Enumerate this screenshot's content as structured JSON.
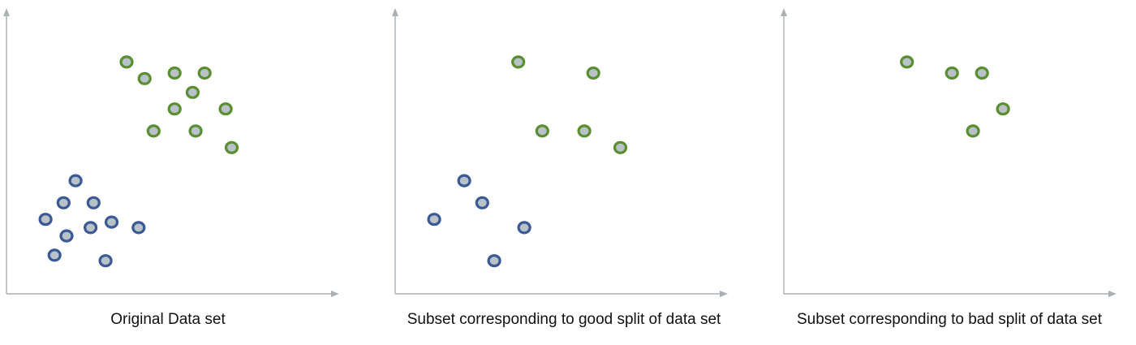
{
  "colors": {
    "axis": "#a9b1b5",
    "green_ring": "#5a8f31",
    "blue_ring": "#3b5a95",
    "point_fill": "#b9c2c9"
  },
  "chart_data": [
    {
      "type": "scatter",
      "title": "Original Data set",
      "xlabel": "",
      "ylabel": "",
      "grid": false,
      "series": [
        {
          "class": "green",
          "color": "#5a8f31",
          "points": [
            [
              0.4,
              0.84
            ],
            [
              0.46,
              0.78
            ],
            [
              0.56,
              0.8
            ],
            [
              0.66,
              0.8
            ],
            [
              0.62,
              0.73
            ],
            [
              0.56,
              0.67
            ],
            [
              0.73,
              0.67
            ],
            [
              0.49,
              0.59
            ],
            [
              0.63,
              0.59
            ],
            [
              0.75,
              0.53
            ]
          ]
        },
        {
          "class": "blue",
          "color": "#3b5a95",
          "points": [
            [
              0.23,
              0.41
            ],
            [
              0.19,
              0.33
            ],
            [
              0.29,
              0.33
            ],
            [
              0.13,
              0.27
            ],
            [
              0.35,
              0.26
            ],
            [
              0.44,
              0.24
            ],
            [
              0.28,
              0.24
            ],
            [
              0.2,
              0.21
            ],
            [
              0.16,
              0.14
            ],
            [
              0.33,
              0.12
            ]
          ]
        }
      ]
    },
    {
      "type": "scatter",
      "title": "Subset corresponding to good split of data set",
      "xlabel": "",
      "ylabel": "",
      "grid": false,
      "series": [
        {
          "class": "green",
          "color": "#5a8f31",
          "points": [
            [
              0.41,
              0.84
            ],
            [
              0.66,
              0.8
            ],
            [
              0.49,
              0.59
            ],
            [
              0.63,
              0.59
            ],
            [
              0.75,
              0.53
            ]
          ]
        },
        {
          "class": "blue",
          "color": "#3b5a95",
          "points": [
            [
              0.23,
              0.41
            ],
            [
              0.29,
              0.33
            ],
            [
              0.13,
              0.27
            ],
            [
              0.43,
              0.24
            ],
            [
              0.33,
              0.12
            ]
          ]
        }
      ]
    },
    {
      "type": "scatter",
      "title": "Subset corresponding to bad split of data set",
      "xlabel": "",
      "ylabel": "",
      "grid": false,
      "series": [
        {
          "class": "green",
          "color": "#5a8f31",
          "points": [
            [
              0.41,
              0.84
            ],
            [
              0.56,
              0.8
            ],
            [
              0.66,
              0.8
            ],
            [
              0.73,
              0.67
            ],
            [
              0.63,
              0.59
            ]
          ]
        }
      ]
    }
  ]
}
